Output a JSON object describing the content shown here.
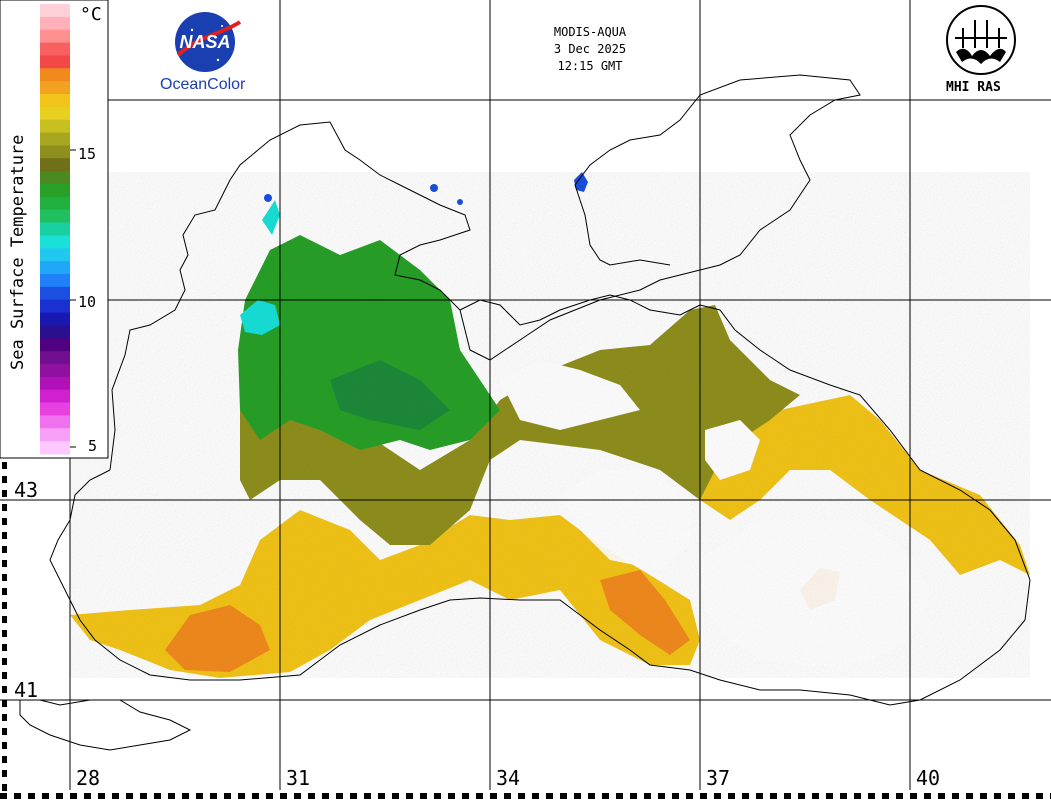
{
  "header": {
    "sensor": "MODIS-AQUA",
    "date": "3 Dec 2025",
    "time": "12:15 GMT"
  },
  "logos": {
    "nasa_text": "NASA",
    "oceancolor_text": "OceanColor",
    "mhi_text": "MHI RAS"
  },
  "colorbar": {
    "title": "Sea Surface Temperature",
    "unit": "°C",
    "ticks": [
      "15",
      "10",
      "5"
    ]
  },
  "grid": {
    "latitude_labels": [
      "43",
      "41"
    ],
    "longitude_labels": [
      "28",
      "31",
      "34",
      "37",
      "40"
    ]
  },
  "colors": {
    "warm": "#f2c419",
    "hot": "#f08a1c",
    "olive": "#8f8f1e",
    "green": "#28a028",
    "dkgreen": "#1e8a3a",
    "cyan": "#19e0d8",
    "blue": "#1a4fe0"
  }
}
